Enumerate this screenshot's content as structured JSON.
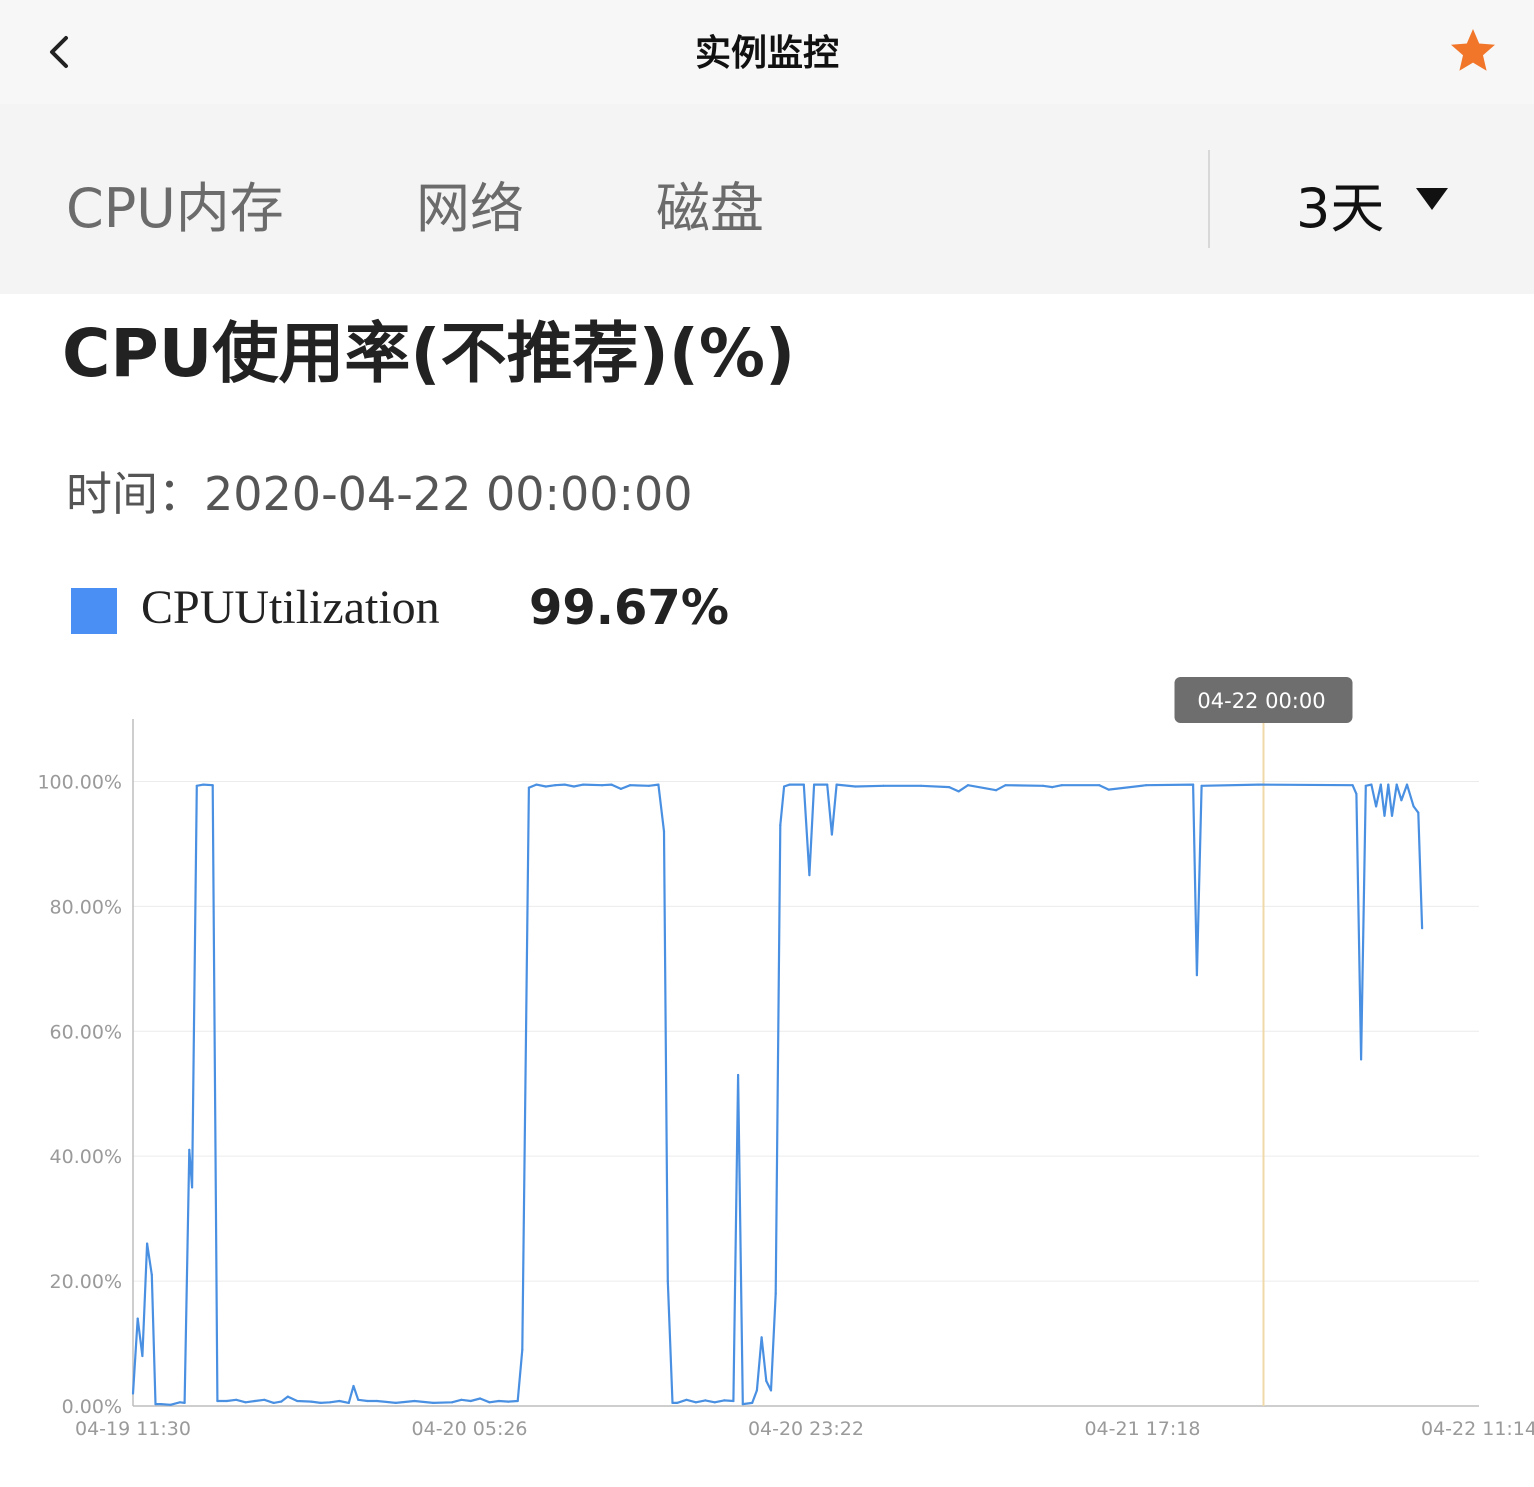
{
  "nav": {
    "title": "实例监控",
    "back_icon": "chevron-left-icon",
    "favorite_icon": "star-icon",
    "favorite_color": "#f2762a"
  },
  "tabs": [
    {
      "label": "CPU内存"
    },
    {
      "label": "网络"
    },
    {
      "label": "磁盘"
    }
  ],
  "range": {
    "value": "3天",
    "icon": "caret-down-icon"
  },
  "chart_data": {
    "type": "line",
    "title": "CPU使用率(不推荐)(%)",
    "time_label": "时间：",
    "time_value": "2020-04-22 00:00:00",
    "series": [
      {
        "name": "CPUUtilization",
        "color": "#4a90e2",
        "current_value": "99.67%",
        "points": [
          [
            0,
            2
          ],
          [
            0.5,
            14
          ],
          [
            1,
            8
          ],
          [
            1.5,
            26
          ],
          [
            2,
            21
          ],
          [
            2.4,
            0.3
          ],
          [
            3,
            0.3
          ],
          [
            4,
            0.2
          ],
          [
            5,
            0.6
          ],
          [
            5.5,
            0.5
          ],
          [
            6,
            41
          ],
          [
            6.3,
            35
          ],
          [
            6.8,
            99.3
          ],
          [
            7.5,
            99.5
          ],
          [
            8.5,
            99.4
          ],
          [
            9,
            0.8
          ],
          [
            10,
            0.8
          ],
          [
            11,
            1
          ],
          [
            12,
            0.6
          ],
          [
            13,
            0.8
          ],
          [
            14,
            1
          ],
          [
            15,
            0.5
          ],
          [
            15.8,
            0.7
          ],
          [
            16.5,
            1.5
          ],
          [
            17.5,
            0.8
          ],
          [
            19,
            0.7
          ],
          [
            20,
            0.5
          ],
          [
            21,
            0.6
          ],
          [
            22,
            0.8
          ],
          [
            23,
            0.5
          ],
          [
            23.5,
            3.2
          ],
          [
            24,
            1
          ],
          [
            25,
            0.8
          ],
          [
            26,
            0.8
          ],
          [
            28,
            0.5
          ],
          [
            30,
            0.8
          ],
          [
            32,
            0.5
          ],
          [
            34,
            0.6
          ],
          [
            35,
            1
          ],
          [
            36,
            0.8
          ],
          [
            37,
            1.2
          ],
          [
            38,
            0.6
          ],
          [
            39,
            0.8
          ],
          [
            40,
            0.7
          ],
          [
            41,
            0.8
          ],
          [
            41.5,
            9
          ],
          [
            42.2,
            99
          ],
          [
            43,
            99.5
          ],
          [
            44,
            99.2
          ],
          [
            45,
            99.4
          ],
          [
            46,
            99.5
          ],
          [
            47,
            99.2
          ],
          [
            48,
            99.5
          ],
          [
            50,
            99.4
          ],
          [
            51,
            99.5
          ],
          [
            52,
            98.8
          ],
          [
            53,
            99.4
          ],
          [
            55,
            99.3
          ],
          [
            56,
            99.5
          ],
          [
            56.6,
            92
          ],
          [
            57,
            20
          ],
          [
            57.5,
            0.5
          ],
          [
            58,
            0.5
          ],
          [
            59,
            1
          ],
          [
            60,
            0.6
          ],
          [
            61,
            0.9
          ],
          [
            62,
            0.6
          ],
          [
            63,
            0.9
          ],
          [
            64,
            0.8
          ],
          [
            64.5,
            53
          ],
          [
            65,
            0.3
          ],
          [
            66,
            0.5
          ],
          [
            66.5,
            2.5
          ],
          [
            67,
            11
          ],
          [
            67.5,
            4
          ],
          [
            68,
            2.5
          ],
          [
            68.5,
            18
          ],
          [
            69,
            93
          ],
          [
            69.4,
            99.2
          ],
          [
            70,
            99.5
          ],
          [
            71.5,
            99.5
          ],
          [
            72.1,
            85
          ],
          [
            72.6,
            99.5
          ],
          [
            74,
            99.5
          ],
          [
            74.5,
            91.5
          ],
          [
            75,
            99.5
          ],
          [
            77,
            99.2
          ],
          [
            80,
            99.3
          ],
          [
            84,
            99.3
          ],
          [
            87,
            99.1
          ],
          [
            88,
            98.4
          ],
          [
            89,
            99.4
          ],
          [
            92,
            98.6
          ],
          [
            93,
            99.4
          ],
          [
            97,
            99.3
          ],
          [
            98,
            99.1
          ],
          [
            99,
            99.4
          ],
          [
            103,
            99.4
          ],
          [
            104,
            98.7
          ],
          [
            108,
            99.4
          ],
          [
            113,
            99.5
          ],
          [
            113.4,
            69
          ],
          [
            113.9,
            99.3
          ],
          [
            120,
            99.5
          ],
          [
            130,
            99.4
          ],
          [
            130.4,
            98
          ],
          [
            130.9,
            55.5
          ],
          [
            131.4,
            99.3
          ],
          [
            132,
            99.5
          ],
          [
            132.5,
            96
          ],
          [
            133,
            99.5
          ],
          [
            133.4,
            94.5
          ],
          [
            133.8,
            99.5
          ],
          [
            134.2,
            94.5
          ],
          [
            134.7,
            99.5
          ],
          [
            135.2,
            97
          ],
          [
            135.8,
            99.5
          ],
          [
            136.5,
            96
          ],
          [
            137,
            95
          ],
          [
            137.4,
            76.5
          ]
        ]
      }
    ],
    "x_tick_labels": [
      "04-19 11:30",
      "04-20 05:26",
      "04-20 23:22",
      "04-21 17:18",
      "04-22 11:14"
    ],
    "x_tick_hours": [
      0,
      35.87,
      71.73,
      107.6,
      143.47
    ],
    "x_range_hours": [
      0,
      143.47
    ],
    "y_ticks": [
      0,
      20,
      40,
      60,
      80,
      100
    ],
    "y_tick_labels": [
      "0.00%",
      "20.00%",
      "40.00%",
      "60.00%",
      "80.00%",
      "100.00%"
    ],
    "ylim": [
      0,
      110
    ],
    "grid": true,
    "crosshair": {
      "hour": 120.5,
      "label": "04-22 00:00"
    },
    "colors": {
      "line": "#4a90e2",
      "grid": "#ececec",
      "axis": "#bdbdbd",
      "crosshair": "#f0d9a8",
      "tooltip_bg": "#6e6e6e"
    }
  }
}
